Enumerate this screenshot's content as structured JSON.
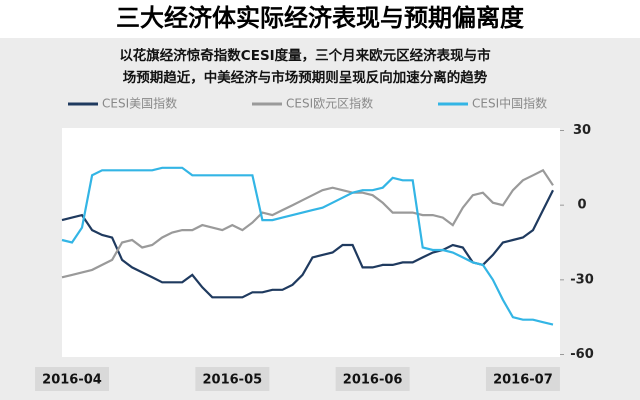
{
  "chart_data": {
    "type": "line",
    "title": "三大经济体实际经济表现与预期偏离度",
    "subtitle": [
      "以花旗经济惊奇指数CESI度量，三个月来欧元区经济表现与市",
      "场预期趋近，中美经济与市场预期则呈现反向加速分离的趋势"
    ],
    "categories": [
      null,
      "2016-04",
      null,
      null,
      null,
      null,
      null,
      null,
      null,
      null,
      null,
      null,
      null,
      null,
      null,
      null,
      null,
      "2016-05",
      null,
      null,
      null,
      null,
      null,
      null,
      null,
      null,
      null,
      null,
      null,
      null,
      null,
      "2016-06",
      null,
      null,
      null,
      null,
      null,
      null,
      null,
      null,
      null,
      null,
      null,
      null,
      null,
      null,
      "2016-07",
      null,
      null,
      null
    ],
    "series": [
      {
        "name": "CESI美国指数",
        "color": "#1f3a5f",
        "values": [
          -6,
          -5,
          -4,
          -10,
          -12,
          -13,
          -22,
          -25,
          -27,
          -29,
          -31,
          -31,
          -31,
          -28,
          -33,
          -37,
          -37,
          -37,
          -37,
          -35,
          -35,
          -34,
          -34,
          -32,
          -28,
          -21,
          -20,
          -19,
          -16,
          -16,
          -25,
          -25,
          -24,
          -24,
          -23,
          -23,
          -21,
          -19,
          -18,
          -16,
          -17,
          -23,
          -24,
          -20,
          -15,
          -14,
          -13,
          -10,
          -2,
          6
        ]
      },
      {
        "name": "CESI欧元区指数",
        "color": "#9a9a9a",
        "values": [
          -29,
          -28,
          -27,
          -26,
          -24,
          -22,
          -15,
          -14,
          -17,
          -16,
          -13,
          -11,
          -10,
          -10,
          -8,
          -9,
          -10,
          -8,
          -10,
          -7,
          -3,
          -4,
          -2,
          0,
          2,
          4,
          6,
          7,
          6,
          5,
          5,
          4,
          1,
          -3,
          -3,
          -3,
          -4,
          -4,
          -5,
          -8,
          -1,
          4,
          5,
          1,
          0,
          6,
          10,
          12,
          14,
          8
        ]
      },
      {
        "name": "CESI中国指数",
        "color": "#33b5e5",
        "values": [
          -14,
          -15,
          -9,
          12,
          14,
          14,
          14,
          14,
          14,
          14,
          15,
          15,
          15,
          12,
          12,
          12,
          12,
          12,
          12,
          12,
          -6,
          -6,
          -5,
          -4,
          -3,
          -2,
          -1,
          1,
          3,
          5,
          6,
          6,
          7,
          11,
          10,
          10,
          -17,
          -18,
          -18,
          -19,
          -21,
          -23,
          -24,
          -30,
          -38,
          -45,
          -46,
          -46,
          -47,
          -48
        ]
      }
    ],
    "ylim": [
      -61,
      31
    ],
    "yticks": [
      30,
      0,
      -30,
      -60
    ]
  }
}
